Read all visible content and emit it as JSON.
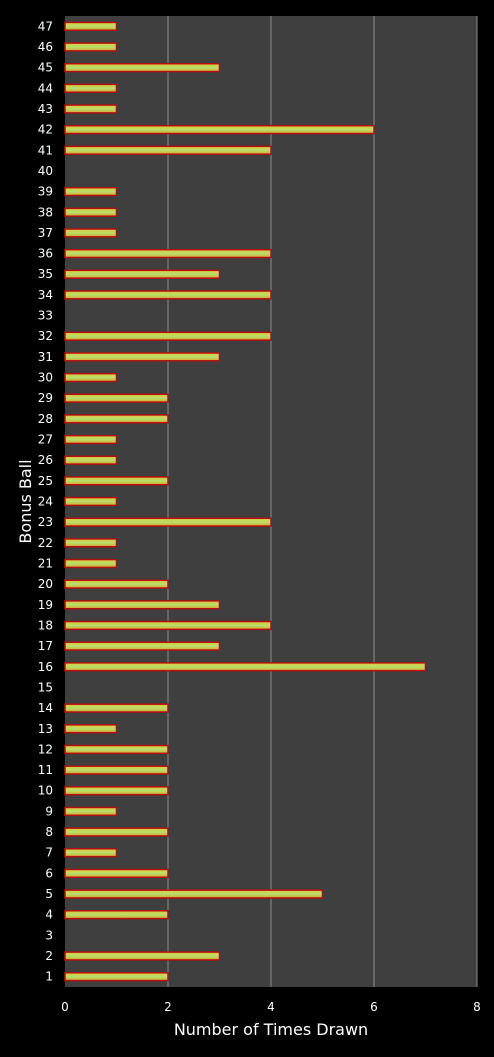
{
  "chart_data": {
    "type": "bar",
    "orientation": "horizontal",
    "xlabel": "Number of Times Drawn",
    "ylabel": "Bonus Ball",
    "xlim": [
      0,
      8
    ],
    "xticks": [
      0,
      2,
      4,
      6,
      8
    ],
    "grid": "vertical",
    "categories": [
      "1",
      "2",
      "3",
      "4",
      "5",
      "6",
      "7",
      "8",
      "9",
      "10",
      "11",
      "12",
      "13",
      "14",
      "15",
      "16",
      "17",
      "18",
      "19",
      "20",
      "21",
      "22",
      "23",
      "24",
      "25",
      "26",
      "27",
      "28",
      "29",
      "30",
      "31",
      "32",
      "33",
      "34",
      "35",
      "36",
      "37",
      "38",
      "39",
      "40",
      "41",
      "42",
      "43",
      "44",
      "45",
      "46",
      "47"
    ],
    "values": [
      2,
      3,
      0,
      2,
      5,
      2,
      1,
      2,
      1,
      2,
      2,
      2,
      1,
      2,
      0,
      7,
      3,
      4,
      3,
      2,
      1,
      1,
      4,
      1,
      2,
      1,
      1,
      2,
      2,
      1,
      3,
      4,
      0,
      4,
      3,
      4,
      1,
      1,
      1,
      0,
      4,
      6,
      1,
      1,
      3,
      1,
      1
    ],
    "colors": {
      "background": "#000000",
      "plot_area": "#3f3f3f",
      "grid": "#8c8c8c",
      "bar_edge": "#b01010",
      "bar_fill_top": "#e8c23a",
      "bar_fill_mid": "#b4e26a",
      "bar_fill_bottom": "#e0a030"
    }
  }
}
